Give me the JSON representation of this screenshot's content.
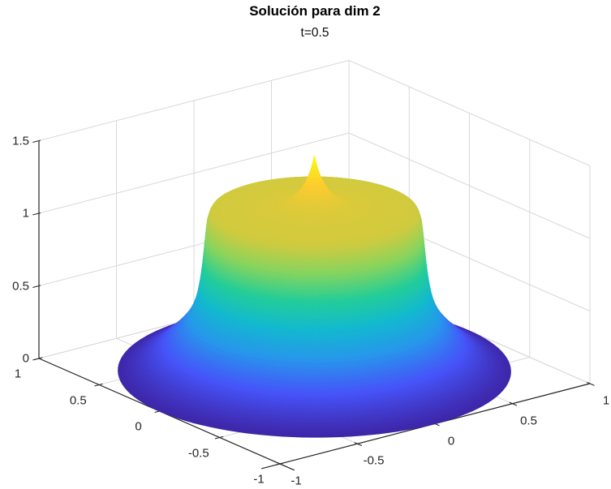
{
  "figure": {
    "title": "Solución para dim 2",
    "subtitle": "t=0.5"
  },
  "chart_data": {
    "type": "surface",
    "title": "Solución para dim 2",
    "subtitle": "t=0.5",
    "background": "#ffffff",
    "grid": true,
    "grid_color": "#d9d9d9",
    "axis_color": "#262626",
    "view": {
      "azimuth_deg": -37.5,
      "elevation_deg": 30,
      "projection": "orthographic"
    },
    "xlim": [
      -1,
      1
    ],
    "ylim": [
      -1,
      1
    ],
    "zlim": [
      0,
      1.5
    ],
    "x_axis": {
      "tick_values": [
        -1,
        -0.5,
        0,
        0.5,
        1
      ],
      "tick_labels": [
        "-1",
        "-0.5",
        "0",
        "0.5",
        "1"
      ]
    },
    "y_axis": {
      "tick_values": [
        -1,
        -0.5,
        0,
        0.5,
        1
      ],
      "tick_labels": [
        "-1",
        "-0.5",
        "0",
        "0.5",
        "1"
      ]
    },
    "z_axis": {
      "tick_values": [
        0,
        0.5,
        1,
        1.5
      ],
      "tick_labels": [
        "0",
        "0.5",
        "1",
        "1.5"
      ]
    },
    "colormap": "parula",
    "colormap_stops": [
      "#3e26a8",
      "#4654f9",
      "#2797eb",
      "#13b9cf",
      "#23cd99",
      "#84d45f",
      "#d3ca3e",
      "#fdcb2f",
      "#f9fb15"
    ],
    "surface": {
      "symmetry": "radial",
      "description": "Radially symmetric solution: flat plateau near z=1.11 for r<0.53, sharp central spike peaking at z=1.48 at r=0, nearly vertical wall near r=0.55, flaring skirt decaying to z=0 at r=1. Color mapped to height with parula.",
      "z_max": 1.48,
      "radial_profile": {
        "r": [
          0,
          0.008,
          0.018,
          0.03,
          0.045,
          0.062,
          0.08,
          0.1,
          0.125,
          0.155,
          0.19,
          0.23,
          0.28,
          0.33,
          0.38,
          0.43,
          0.47,
          0.505,
          0.525,
          0.535,
          0.545,
          0.552,
          0.558,
          0.564,
          0.57,
          0.577,
          0.585,
          0.595,
          0.607,
          0.622,
          0.64,
          0.662,
          0.688,
          0.718,
          0.752,
          0.79,
          0.832,
          0.876,
          0.92,
          0.962,
          1.0
        ],
        "z": [
          1.48,
          1.432,
          1.385,
          1.342,
          1.3,
          1.262,
          1.23,
          1.202,
          1.178,
          1.158,
          1.144,
          1.135,
          1.128,
          1.122,
          1.117,
          1.113,
          1.11,
          1.106,
          1.098,
          1.075,
          1.03,
          0.96,
          0.88,
          0.8,
          0.725,
          0.655,
          0.59,
          0.525,
          0.468,
          0.418,
          0.373,
          0.33,
          0.288,
          0.245,
          0.202,
          0.16,
          0.118,
          0.08,
          0.048,
          0.02,
          0.0
        ]
      }
    }
  }
}
